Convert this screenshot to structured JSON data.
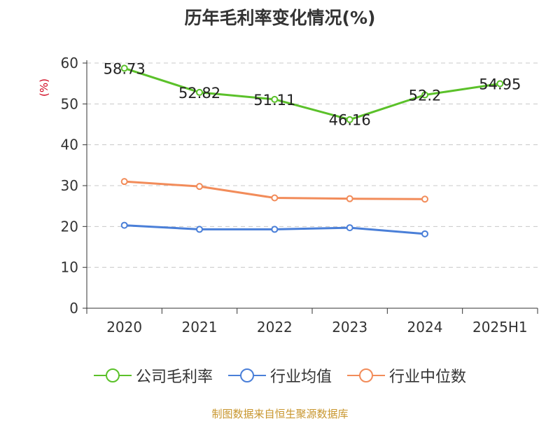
{
  "chart_data": {
    "type": "line",
    "title": "历年毛利率变化情况(%)",
    "ylabel": "(%)",
    "categories": [
      "2020",
      "2021",
      "2022",
      "2023",
      "2024",
      "2025H1"
    ],
    "ylim": [
      0,
      60
    ],
    "yticks": [
      0,
      10,
      20,
      30,
      40,
      50,
      60
    ],
    "grid": true,
    "legend_position": "bottom",
    "series": [
      {
        "name": "公司毛利率",
        "color": "#5bc12a",
        "values": [
          58.73,
          52.82,
          51.11,
          46.16,
          52.2,
          54.95
        ],
        "labels": [
          "58.73",
          "52.82",
          "51.11",
          "46.16",
          "52.2",
          "54.95"
        ]
      },
      {
        "name": "行业均值",
        "color": "#4a7fd8",
        "values": [
          20.3,
          19.3,
          19.3,
          19.7,
          18.2,
          null
        ]
      },
      {
        "name": "行业中位数",
        "color": "#f28c5a",
        "values": [
          31.0,
          29.8,
          27.0,
          26.8,
          26.7,
          null
        ]
      }
    ]
  },
  "source": "制图数据来自恒生聚源数据库"
}
